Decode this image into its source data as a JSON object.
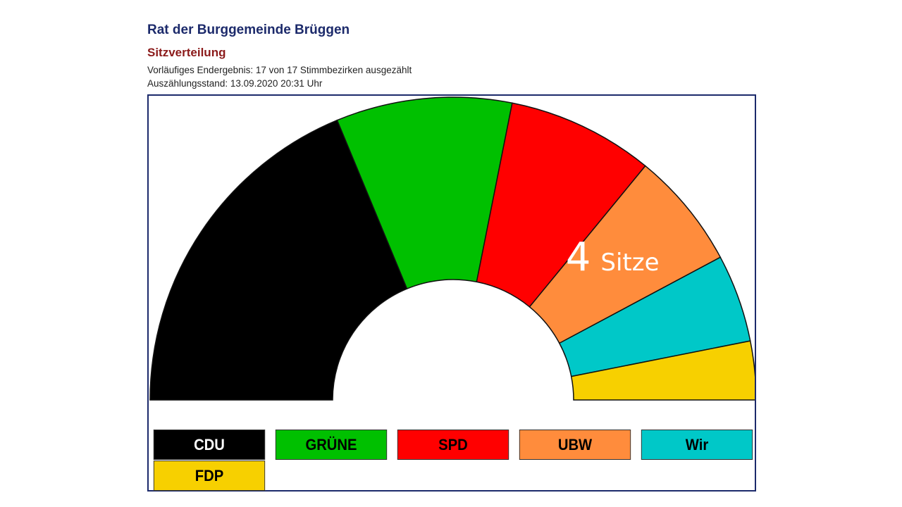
{
  "header": {
    "title": "Rat der Burggemeinde Brüggen",
    "subtitle": "Sitzverteilung",
    "info_line1": "Vorläufiges Endergebnis: 17 von 17 Stimmbezirken ausgezählt",
    "info_line2": "Auszählungsstand: 13.09.2020 20:31 Uhr"
  },
  "chart_data": {
    "type": "pie",
    "variant": "semicircle-seat-distribution",
    "categories": [
      "CDU",
      "GRÜNE",
      "SPD",
      "UBW",
      "Wir",
      "FDP"
    ],
    "values": [
      12,
      6,
      5,
      4,
      3,
      2
    ],
    "colors": [
      "#000000",
      "#00c000",
      "#ff0000",
      "#ff8c3c",
      "#00c8c8",
      "#f7d000"
    ],
    "label_colors": [
      "#ffffff",
      "#000000",
      "#000000",
      "#000000",
      "#000000",
      "#000000"
    ],
    "annotation": {
      "category": "UBW",
      "value_text": "4",
      "unit_text": "Sitze"
    },
    "legend_position": "bottom"
  }
}
